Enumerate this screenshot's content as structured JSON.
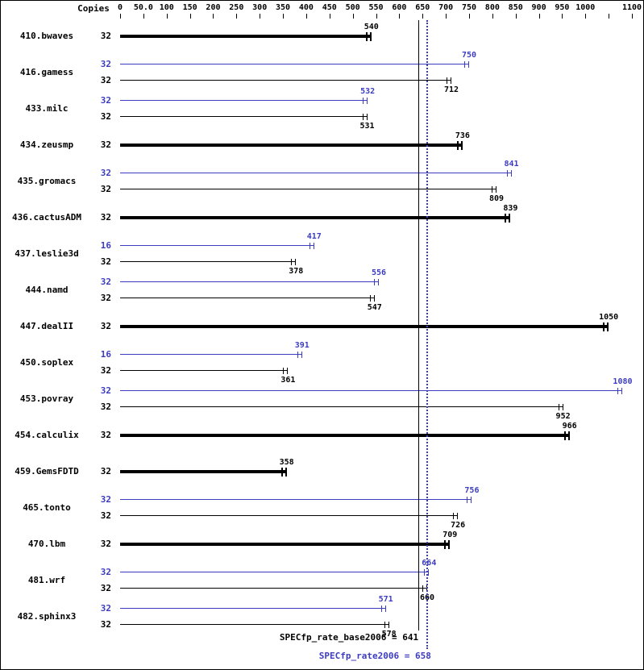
{
  "header": {
    "copies_label": "Copies"
  },
  "colors": {
    "base": "#000000",
    "peak": "#3c3cc0",
    "background": "#ffffff"
  },
  "chart_data": {
    "type": "bar",
    "orientation": "horizontal",
    "title": "",
    "xlabel": "",
    "ylabel": "",
    "x_axis": {
      "xlim": [
        0,
        1130
      ],
      "ticks": [
        {
          "value": 0,
          "label": "0"
        },
        {
          "value": 50,
          "label": "50.0"
        },
        {
          "value": 100,
          "label": "100"
        },
        {
          "value": 150,
          "label": "150"
        },
        {
          "value": 200,
          "label": "200"
        },
        {
          "value": 250,
          "label": "250"
        },
        {
          "value": 300,
          "label": "300"
        },
        {
          "value": 350,
          "label": "350"
        },
        {
          "value": 400,
          "label": "400"
        },
        {
          "value": 450,
          "label": "450"
        },
        {
          "value": 500,
          "label": "500"
        },
        {
          "value": 550,
          "label": "550"
        },
        {
          "value": 600,
          "label": "600"
        },
        {
          "value": 650,
          "label": "650"
        },
        {
          "value": 700,
          "label": "700"
        },
        {
          "value": 750,
          "label": "750"
        },
        {
          "value": 800,
          "label": "800"
        },
        {
          "value": 850,
          "label": "850"
        },
        {
          "value": 900,
          "label": "900"
        },
        {
          "value": 950,
          "label": "950"
        },
        {
          "value": 1000,
          "label": "1000"
        },
        {
          "value": 1050,
          "label": ""
        },
        {
          "value": 1100,
          "label": "1100"
        }
      ]
    },
    "benchmarks": [
      {
        "name": "410.bwaves",
        "bars": [
          {
            "type": "base",
            "copies": 32,
            "value": 540,
            "bold": true
          }
        ]
      },
      {
        "name": "416.gamess",
        "bars": [
          {
            "type": "peak",
            "copies": 32,
            "value": 750
          },
          {
            "type": "base",
            "copies": 32,
            "value": 712
          }
        ]
      },
      {
        "name": "433.milc",
        "bars": [
          {
            "type": "peak",
            "copies": 32,
            "value": 532
          },
          {
            "type": "base",
            "copies": 32,
            "value": 531
          }
        ]
      },
      {
        "name": "434.zeusmp",
        "bars": [
          {
            "type": "base",
            "copies": 32,
            "value": 736,
            "bold": true
          }
        ]
      },
      {
        "name": "435.gromacs",
        "bars": [
          {
            "type": "peak",
            "copies": 32,
            "value": 841
          },
          {
            "type": "base",
            "copies": 32,
            "value": 809
          }
        ]
      },
      {
        "name": "436.cactusADM",
        "bars": [
          {
            "type": "base",
            "copies": 32,
            "value": 839,
            "bold": true
          }
        ]
      },
      {
        "name": "437.leslie3d",
        "bars": [
          {
            "type": "peak",
            "copies": 16,
            "value": 417
          },
          {
            "type": "base",
            "copies": 32,
            "value": 378
          }
        ]
      },
      {
        "name": "444.namd",
        "bars": [
          {
            "type": "peak",
            "copies": 32,
            "value": 556
          },
          {
            "type": "base",
            "copies": 32,
            "value": 547
          }
        ]
      },
      {
        "name": "447.dealII",
        "bars": [
          {
            "type": "base",
            "copies": 32,
            "value": 1050,
            "bold": true
          }
        ]
      },
      {
        "name": "450.soplex",
        "bars": [
          {
            "type": "peak",
            "copies": 16,
            "value": 391
          },
          {
            "type": "base",
            "copies": 32,
            "value": 361
          }
        ]
      },
      {
        "name": "453.povray",
        "bars": [
          {
            "type": "peak",
            "copies": 32,
            "value": 1080
          },
          {
            "type": "base",
            "copies": 32,
            "value": 952
          }
        ]
      },
      {
        "name": "454.calculix",
        "bars": [
          {
            "type": "base",
            "copies": 32,
            "value": 966,
            "bold": true
          }
        ]
      },
      {
        "name": "459.GemsFDTD",
        "bars": [
          {
            "type": "base",
            "copies": 32,
            "value": 358,
            "bold": true
          }
        ]
      },
      {
        "name": "465.tonto",
        "bars": [
          {
            "type": "peak",
            "copies": 32,
            "value": 756
          },
          {
            "type": "base",
            "copies": 32,
            "value": 726
          }
        ]
      },
      {
        "name": "470.lbm",
        "bars": [
          {
            "type": "base",
            "copies": 32,
            "value": 709,
            "bold": true
          }
        ]
      },
      {
        "name": "481.wrf",
        "bars": [
          {
            "type": "peak",
            "copies": 32,
            "value": 664
          },
          {
            "type": "base",
            "copies": 32,
            "value": 660
          }
        ]
      },
      {
        "name": "482.sphinx3",
        "bars": [
          {
            "type": "peak",
            "copies": 32,
            "value": 571
          },
          {
            "type": "base",
            "copies": 32,
            "value": 578
          }
        ]
      }
    ],
    "base_mean": {
      "label": "SPECfp_rate_base2006 = 641",
      "value": 641
    },
    "peak_mean": {
      "label": "SPECfp_rate2006 = 658",
      "value": 658
    }
  }
}
